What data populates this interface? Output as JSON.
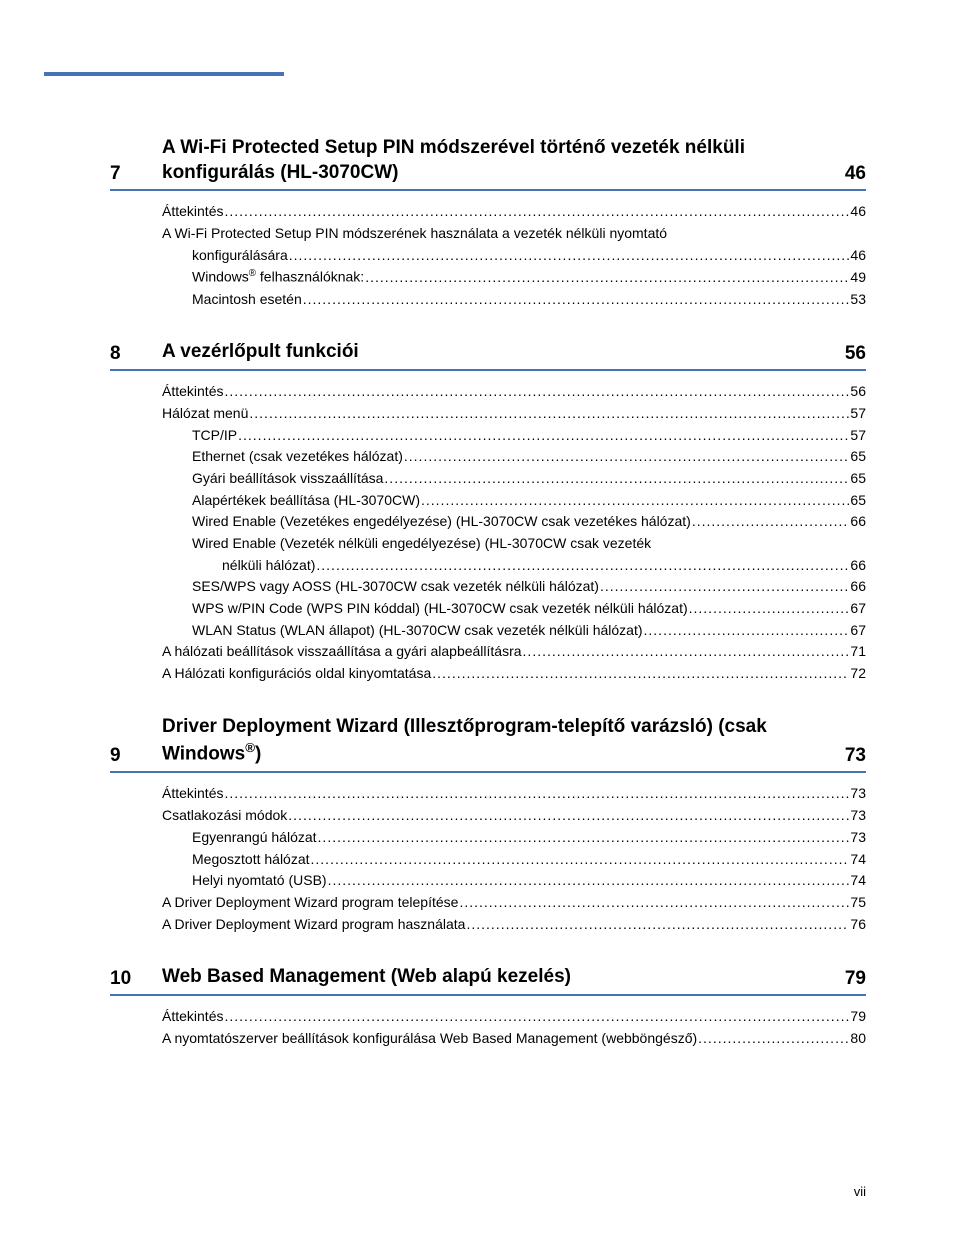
{
  "colors": {
    "accent": "#4573b3",
    "text": "#000000",
    "background": "#ffffff"
  },
  "typography": {
    "body_font": "Arial",
    "body_size_pt": 11,
    "heading_size_pt": 14,
    "heading_weight": "bold"
  },
  "page_number_label": "vii",
  "sections": [
    {
      "num": "7",
      "title": "A Wi-Fi Protected Setup PIN módszerével történő vezeték nélküli konfigurálás (HL-3070CW)",
      "page": "46",
      "items": [
        {
          "label": "Áttekintés",
          "page": "46",
          "indent": 0
        },
        {
          "label": "A Wi-Fi Protected Setup PIN módszerének használata a vezeték nélküli nyomtató konfigurálására",
          "page": "46",
          "indent": 0,
          "wrap": true
        },
        {
          "label": "Windows® felhasználóknak:",
          "page": "49",
          "indent": 1,
          "has_sup": true,
          "sup_after": "Windows",
          "tail": " felhasználóknak:"
        },
        {
          "label": "Macintosh esetén",
          "page": "53",
          "indent": 1
        }
      ]
    },
    {
      "num": "8",
      "title": "A vezérlőpult funkciói",
      "page": "56",
      "items": [
        {
          "label": "Áttekintés",
          "page": "56",
          "indent": 0
        },
        {
          "label": "Hálózat menü",
          "page": "57",
          "indent": 0
        },
        {
          "label": "TCP/IP",
          "page": "57",
          "indent": 1
        },
        {
          "label": "Ethernet (csak vezetékes hálózat)",
          "page": "65",
          "indent": 1
        },
        {
          "label": "Gyári beállítások visszaállítása",
          "page": "65",
          "indent": 1
        },
        {
          "label": "Alapértékek beállítása (HL-3070CW)",
          "page": "65",
          "indent": 1
        },
        {
          "label": "Wired Enable (Vezetékes engedélyezése) (HL-3070CW csak vezetékes hálózat)",
          "page": "66",
          "indent": 1
        },
        {
          "label": "Wired Enable (Vezeték nélküli engedélyezése) (HL-3070CW csak vezeték nélküli hálózat)",
          "page": "66",
          "indent": 1,
          "wrap": true
        },
        {
          "label": "SES/WPS vagy AOSS (HL-3070CW csak vezeték nélküli hálózat)",
          "page": "66",
          "indent": 1
        },
        {
          "label": "WPS w/PIN Code (WPS PIN kóddal) (HL-3070CW csak vezeték nélküli hálózat)",
          "page": "67",
          "indent": 1
        },
        {
          "label": "WLAN Status (WLAN állapot) (HL-3070CW csak vezeték nélküli hálózat)",
          "page": "67",
          "indent": 1
        },
        {
          "label": "A hálózati beállítások visszaállítása a gyári alapbeállításra",
          "page": "71",
          "indent": 0
        },
        {
          "label": "A Hálózati konfigurációs oldal kinyomtatása",
          "page": "72",
          "indent": 0
        }
      ]
    },
    {
      "num": "9",
      "title": "Driver Deployment Wizard (Illesztőprogram-telepítő varázsló) (csak Windows®)",
      "page": "73",
      "title_has_sup": true,
      "title_pre": "Driver Deployment Wizard (Illesztőprogram-telepítő varázsló) (csak Windows",
      "title_post": ")",
      "items": [
        {
          "label": "Áttekintés",
          "page": "73",
          "indent": 0
        },
        {
          "label": "Csatlakozási módok",
          "page": "73",
          "indent": 0
        },
        {
          "label": "Egyenrangú hálózat",
          "page": "73",
          "indent": 1
        },
        {
          "label": "Megosztott hálózat",
          "page": "74",
          "indent": 1
        },
        {
          "label": "Helyi nyomtató (USB)",
          "page": "74",
          "indent": 1
        },
        {
          "label": "A Driver Deployment Wizard program telepítése",
          "page": "75",
          "indent": 0
        },
        {
          "label": "A Driver Deployment Wizard program használata",
          "page": "76",
          "indent": 0
        }
      ]
    },
    {
      "num": "10",
      "title": "Web Based Management (Web alapú kezelés)",
      "page": "79",
      "items": [
        {
          "label": "Áttekintés",
          "page": "79",
          "indent": 0
        },
        {
          "label": "A nyomtatószerver beállítások konfigurálása Web Based Management (webböngésző)",
          "page": "80",
          "indent": 0
        }
      ]
    }
  ]
}
